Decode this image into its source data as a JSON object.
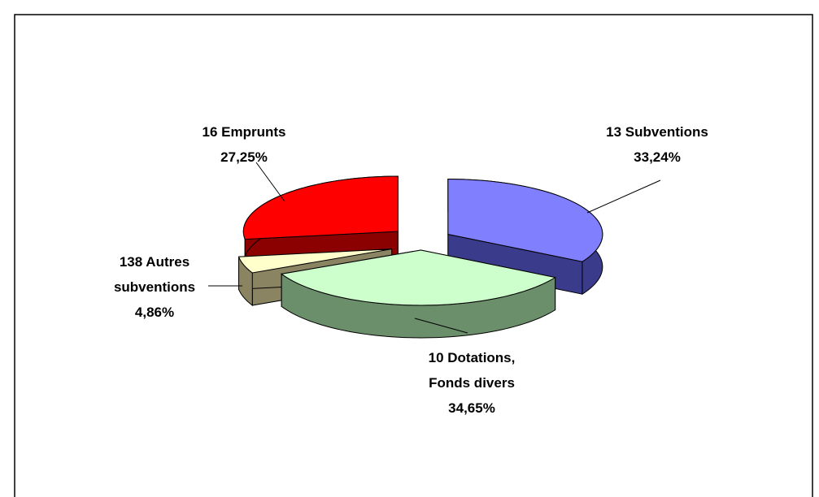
{
  "chart_data": {
    "type": "pie",
    "categories": [
      "13 Subventions",
      "10 Dotations, Fonds divers",
      "138 Autres subventions",
      "16 Emprunts"
    ],
    "values": [
      33.24,
      34.65,
      4.86,
      27.25
    ],
    "value_labels": [
      "33,24%",
      "34,65%",
      "4,86%",
      "27,25%"
    ],
    "colors": [
      "#8080ff",
      "#ccffcc",
      "#ffffcc",
      "#ff0000"
    ],
    "side_colors": [
      "#3b3b8c",
      "#6b8e6b",
      "#8a8462",
      "#8b0000"
    ]
  }
}
